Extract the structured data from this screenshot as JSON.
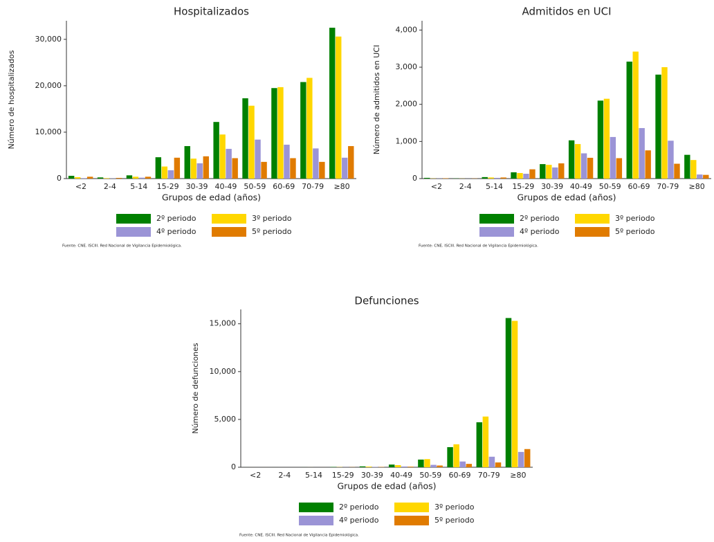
{
  "chart_data": [
    {
      "type": "bar",
      "title": "Hospitalizados",
      "y_label": "Número de hospitalizados",
      "x_label": "Grupos de edad (años)",
      "categories": [
        "<2",
        "2-4",
        "5-14",
        "15-29",
        "30-39",
        "40-49",
        "50-59",
        "60-69",
        "70-79",
        "≥80"
      ],
      "series": [
        {
          "name": "2º periodo",
          "color": "#008000",
          "values": [
            600,
            250,
            700,
            4600,
            7000,
            12200,
            17300,
            19500,
            20800,
            32500
          ]
        },
        {
          "name": "3º periodo",
          "color": "#ffd700",
          "values": [
            300,
            100,
            400,
            2600,
            4300,
            9500,
            15700,
            19700,
            21700,
            30600
          ]
        },
        {
          "name": "4º periodo",
          "color": "#9b94d6",
          "values": [
            100,
            50,
            200,
            1800,
            3300,
            6400,
            8400,
            7300,
            6500,
            4500
          ]
        },
        {
          "name": "5º periodo",
          "color": "#e07b00",
          "values": [
            400,
            150,
            400,
            4500,
            4800,
            4400,
            3600,
            4400,
            3600,
            7000
          ]
        }
      ],
      "ylim": [
        0,
        34000
      ],
      "yticks": [
        0,
        {
          "value": 10000,
          "label": "10,000"
        },
        {
          "value": 20000,
          "label": "20,000"
        },
        {
          "value": 30000,
          "label": "30,000"
        }
      ],
      "source": "Fuente: CNE. ISCIII. Red Nacional de Vigilancia Epidemiológica."
    },
    {
      "type": "bar",
      "title": "Admitidos en UCI",
      "y_label": "Número de admitidos en UCI",
      "x_label": "Grupos de edad (años)",
      "categories": [
        "<2",
        "2-4",
        "5-14",
        "15-29",
        "30-39",
        "40-49",
        "50-59",
        "60-69",
        "70-79",
        "≥80"
      ],
      "series": [
        {
          "name": "2º periodo",
          "color": "#008000",
          "values": [
            20,
            5,
            40,
            170,
            390,
            1030,
            2100,
            3150,
            2800,
            640
          ]
        },
        {
          "name": "3º periodo",
          "color": "#ffd700",
          "values": [
            5,
            3,
            30,
            150,
            370,
            930,
            2150,
            3420,
            3000,
            500
          ]
        },
        {
          "name": "4º periodo",
          "color": "#9b94d6",
          "values": [
            5,
            2,
            20,
            130,
            300,
            680,
            1120,
            1360,
            1020,
            110
          ]
        },
        {
          "name": "5º periodo",
          "color": "#e07b00",
          "values": [
            10,
            5,
            30,
            250,
            410,
            560,
            550,
            760,
            400,
            100
          ]
        }
      ],
      "ylim": [
        0,
        4250
      ],
      "yticks": [
        0,
        {
          "value": 1000,
          "label": "1,000"
        },
        {
          "value": 2000,
          "label": "2,000"
        },
        {
          "value": 3000,
          "label": "3,000"
        },
        {
          "value": 4000,
          "label": "4,000"
        }
      ],
      "source": "Fuente: CNE. ISCIII. Red Nacional de Vigilancia Epidemiológica."
    },
    {
      "type": "bar",
      "title": "Defunciones",
      "y_label": "Número de defunciones",
      "x_label": "Grupos de edad (años)",
      "categories": [
        "<2",
        "2-4",
        "5-14",
        "15-29",
        "30-39",
        "40-49",
        "50-59",
        "60-69",
        "70-79",
        "≥80"
      ],
      "series": [
        {
          "name": "2º periodo",
          "color": "#008000",
          "values": [
            2,
            1,
            5,
            30,
            90,
            280,
            800,
            2100,
            4700,
            15600
          ]
        },
        {
          "name": "3º periodo",
          "color": "#ffd700",
          "values": [
            1,
            0,
            3,
            20,
            70,
            220,
            850,
            2400,
            5300,
            15300
          ]
        },
        {
          "name": "4º periodo",
          "color": "#9b94d6",
          "values": [
            0,
            0,
            1,
            10,
            30,
            80,
            250,
            600,
            1100,
            1600
          ]
        },
        {
          "name": "5º periodo",
          "color": "#e07b00",
          "values": [
            1,
            0,
            2,
            15,
            30,
            60,
            180,
            350,
            500,
            1900
          ]
        }
      ],
      "ylim": [
        0,
        16500
      ],
      "yticks": [
        0,
        {
          "value": 5000,
          "label": "5,000"
        },
        {
          "value": 10000,
          "label": "10,000"
        },
        {
          "value": 15000,
          "label": "15,000"
        }
      ],
      "source": "Fuente: CNE. ISCIII. Red Nacional de Vigilancia Epidemiológica."
    }
  ]
}
